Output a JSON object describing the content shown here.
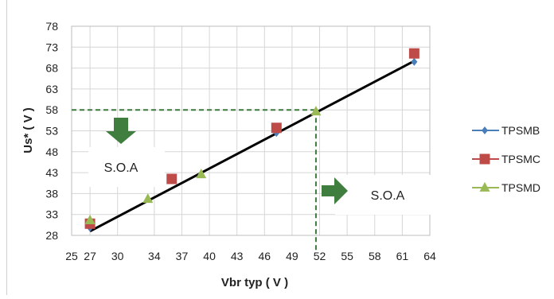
{
  "chart_data": {
    "type": "scatter",
    "xlabel": "Vbr typ ( V )",
    "ylabel": "Us* ( V )",
    "xlim": [
      25,
      64
    ],
    "ylim": [
      28,
      78
    ],
    "x_ticks": [
      25,
      27,
      30,
      34,
      37,
      40,
      43,
      46,
      49,
      52,
      55,
      58,
      61,
      64
    ],
    "y_ticks": [
      28,
      33,
      38,
      43,
      48,
      53,
      58,
      63,
      68,
      73,
      78
    ],
    "grid": true,
    "legend_position": "right",
    "series": [
      {
        "name": "TPSMB",
        "marker": "diamond",
        "color": "#4a7ebb",
        "points": [
          [
            27,
            29.8
          ],
          [
            47.3,
            52.5
          ],
          [
            62.3,
            69.5
          ]
        ]
      },
      {
        "name": "TPSMC",
        "marker": "square",
        "color": "#be4b48",
        "points": [
          [
            27,
            30.8
          ],
          [
            35.9,
            41.5
          ],
          [
            47.3,
            53.7
          ],
          [
            62.3,
            71.5
          ]
        ]
      },
      {
        "name": "TPSMD",
        "marker": "triangle",
        "color": "#98b954",
        "points": [
          [
            27,
            31.6
          ],
          [
            33.3,
            36.7
          ],
          [
            39.1,
            42.6
          ],
          [
            51.6,
            57.6
          ]
        ]
      }
    ],
    "trend_line": {
      "color": "#000000",
      "from": [
        27,
        29
      ],
      "to": [
        62.3,
        69.7
      ]
    },
    "threshold": {
      "x": 51.6,
      "y": 58,
      "color": "#3e7a3e"
    },
    "annotations": [
      {
        "label": "S.O.A",
        "arrow": "down",
        "region": "above-left"
      },
      {
        "label": "S.O.A",
        "arrow": "right",
        "region": "below-right"
      }
    ]
  }
}
